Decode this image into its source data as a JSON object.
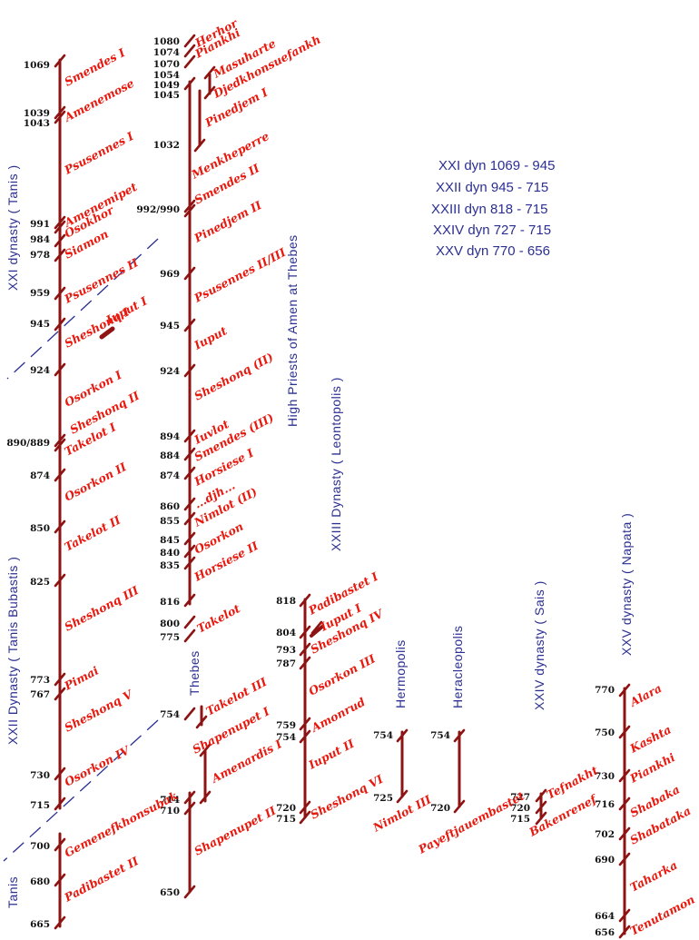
{
  "colors": {
    "timeline": "#8e1414",
    "name_text": "#e8190e",
    "year_text": "#111111",
    "dynasty_label": "#2b2f92",
    "divider": "#2b2f92"
  },
  "legend": [
    "XXI dyn 1069 - 945",
    "XXII dyn 945 - 715",
    "XXIII dyn 818 - 715",
    "XXIV dyn 727 - 715",
    "XXV dyn 770 - 656"
  ],
  "labels": {
    "xxi": "XXI dynasty ( Tanis )",
    "xxii": "XXII Dynasty ( Tanis Bubastis )",
    "tanis": "Tanis",
    "hpa": "High Priests of Amen at Thebes",
    "thebes": "Thebes",
    "xxiii": "XXIII Dynasty ( Leontopolis )",
    "hermopolis": "Hermopolis",
    "heracleopolis": "Heracleopolis",
    "xxiv": "XXIV dynasty ( Sais )",
    "xxv": "XXV dynasty ( Napata )"
  },
  "col1": {
    "years": [
      "1069",
      "1039",
      "1043",
      "991",
      "984",
      "978",
      "959",
      "945",
      "924",
      "890/889",
      "874",
      "850",
      "825",
      "773",
      "767",
      "730",
      "715",
      "700",
      "680",
      "665"
    ],
    "names": [
      "Smendes I",
      "Amenemose",
      "Psusennes I",
      "Amenemipet",
      "Osokhor",
      "Siamon",
      "Psusennes II",
      "Sheshonq I",
      "Iuput I",
      "Osorkon I",
      "Sheshonq II",
      "Takelot I",
      "Osorkon II",
      "Takelot II",
      "Sheshonq III",
      "Pimai",
      "Sheshonq V",
      "Osorkon IV",
      "Gemenefkhonsubak",
      "Padibastet II"
    ]
  },
  "col2": {
    "years": [
      "1080",
      "1074",
      "1070",
      "1054",
      "1049",
      "1045",
      "1032",
      "992/990",
      "969",
      "945",
      "924",
      "894",
      "884",
      "874",
      "860",
      "855",
      "845",
      "840",
      "835",
      "816",
      "800",
      "775",
      "754",
      "714",
      "710",
      "650"
    ],
    "names": [
      "Herhor",
      "Piankhi",
      "Masuharte",
      "Djedkhonsuefankh",
      "Pinedjem I",
      "Menkheperre",
      "Smendes II",
      "Pinedjem II",
      "Psusennes II/III",
      "Iuput",
      "Sheshonq (II)",
      "Iuvlot",
      "Smendes (III)",
      "Horsiese I",
      "...djh...",
      "Nimlot (II)",
      "Osorkon",
      "Horsiese II",
      "Takelot",
      "Takelot III",
      "Shapenupet I",
      "Amenardis I",
      "Shapenupet II"
    ]
  },
  "col3": {
    "years": [
      "818",
      "804",
      "793",
      "787",
      "759",
      "754",
      "720",
      "715"
    ],
    "names": [
      "Padibastet I",
      "Iuput I",
      "Sheshonq IV",
      "Osorkon III",
      "Amonrud",
      "Iuput II",
      "Sheshonq VI"
    ]
  },
  "col4": {
    "years": [
      "754",
      "725"
    ],
    "names": [
      "Nimlot III"
    ]
  },
  "col5": {
    "years": [
      "754",
      "720"
    ],
    "names": [
      "Payeftjauembastet"
    ]
  },
  "col6": {
    "years": [
      "727",
      "720",
      "715"
    ],
    "names": [
      "Tefnakht",
      "Bakenrenef"
    ]
  },
  "col7": {
    "years": [
      "770",
      "750",
      "730",
      "716",
      "702",
      "690",
      "664",
      "656"
    ],
    "names": [
      "Alara",
      "Kashta",
      "Piankhi",
      "Shabaka",
      "Shabataka",
      "Taharka",
      "Tenutamon"
    ]
  }
}
